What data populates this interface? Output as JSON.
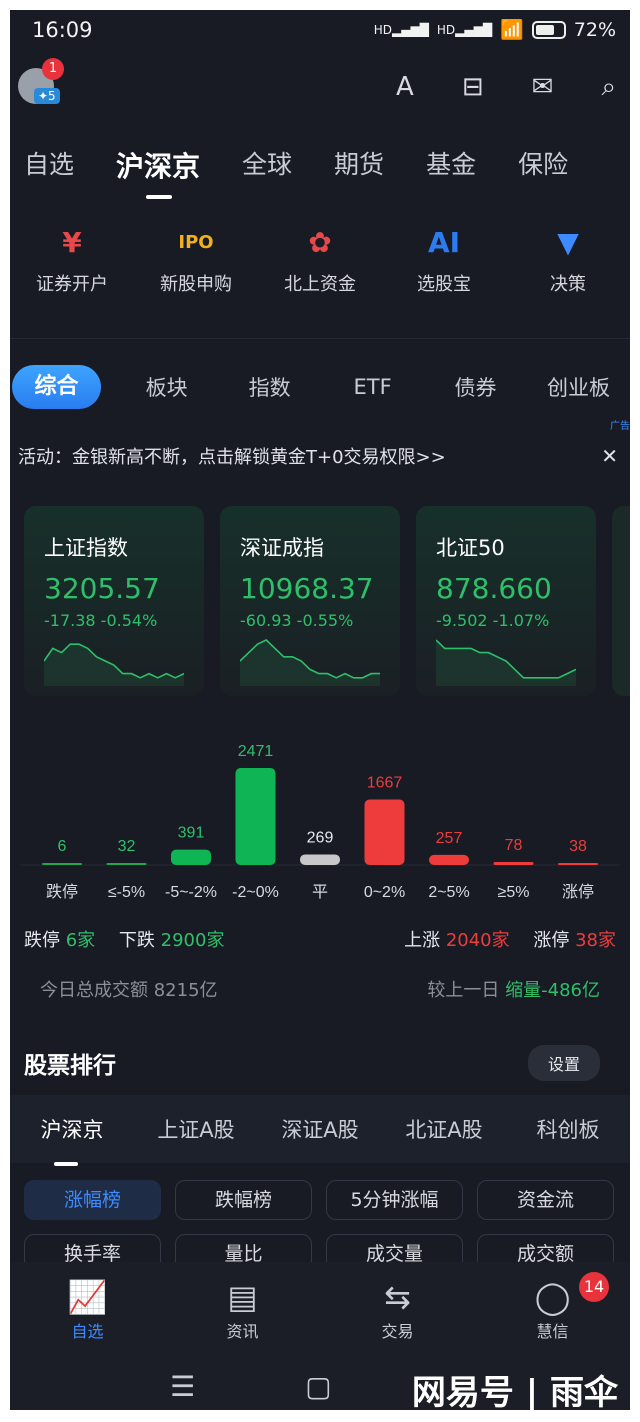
{
  "status": {
    "time": "16:09",
    "signal1": "HD",
    "signal2": "HD",
    "battery": "72%"
  },
  "header": {
    "avatar_badge": "1",
    "avatar_level": "✦5",
    "icons": [
      "font-size-icon",
      "scan-icon",
      "mail-icon",
      "search-icon"
    ]
  },
  "main_tabs": [
    {
      "label": "自选"
    },
    {
      "label": "沪深京",
      "active": true
    },
    {
      "label": "全球"
    },
    {
      "label": "期货",
      "dot": true
    },
    {
      "label": "基金"
    },
    {
      "label": "保险"
    }
  ],
  "quick": [
    {
      "label": "证券开户",
      "icon": "lock-yen-icon",
      "color": "#e8484a"
    },
    {
      "label": "新股申购",
      "icon": "ipo-icon",
      "color": "#f2b01e"
    },
    {
      "label": "北上资金",
      "icon": "hk-flower-icon",
      "color": "#e8484a"
    },
    {
      "label": "选股宝",
      "icon": "ai-head-icon",
      "color": "#2a7cf0"
    },
    {
      "label": "决策",
      "icon": "dropdown-circle-icon",
      "color": "#3d8bff"
    }
  ],
  "sub_tabs": [
    {
      "label": "综合",
      "active": true
    },
    {
      "label": "板块"
    },
    {
      "label": "指数"
    },
    {
      "label": "ETF"
    },
    {
      "label": "债券"
    },
    {
      "label": "创业板"
    }
  ],
  "ad": {
    "text": "活动：金银新高不断，点击解锁黄金T+0交易权限>>",
    "tag": "广告"
  },
  "indices": [
    {
      "name": "上证指数",
      "price": "3205.57",
      "change": "-17.38 -0.54%",
      "spark": [
        5,
        8,
        7,
        9,
        9,
        8,
        6,
        5,
        4,
        2,
        2,
        1,
        2,
        1,
        2,
        1,
        2
      ]
    },
    {
      "name": "深证成指",
      "price": "10968.37",
      "change": "-60.93 -0.55%",
      "spark": [
        5,
        7,
        9,
        10,
        8,
        6,
        6,
        5,
        3,
        2,
        2,
        1,
        2,
        1,
        1,
        2,
        2
      ]
    },
    {
      "name": "北证50",
      "price": "878.660",
      "change": "-9.502 -1.07%",
      "spark": [
        10,
        8,
        8,
        8,
        8,
        7,
        7,
        6,
        5,
        3,
        1,
        1,
        1,
        1,
        1,
        2,
        3
      ]
    }
  ],
  "chart_data": {
    "type": "bar",
    "categories": [
      "跌停",
      "≤-5%",
      "-5~-2%",
      "-2~0%",
      "平",
      "0~2%",
      "2~5%",
      "≥5%",
      "涨停"
    ],
    "values": [
      6,
      32,
      391,
      2471,
      269,
      1667,
      257,
      78,
      38
    ],
    "colors": [
      "#1fa64f",
      "#1fa64f",
      "#0fb454",
      "#0fb454",
      "#c8c8c8",
      "#ee3b3b",
      "#ee3b3b",
      "#ee3b3b",
      "#ee3b3b"
    ],
    "label_colors": [
      "#2fbf6a",
      "#2fbf6a",
      "#2fbf6a",
      "#2fbf6a",
      "#e6e8ee",
      "#ea3d3d",
      "#ea3d3d",
      "#ea3d3d",
      "#ea3d3d"
    ]
  },
  "stats": {
    "limit_down_label": "跌停",
    "limit_down": "6家",
    "down_label": "下跌",
    "down": "2900家",
    "up_label": "上涨",
    "up": "2040家",
    "limit_up_label": "涨停",
    "limit_up": "38家",
    "turnover": "今日总成交额 8215亿",
    "compare_label": "较上一日",
    "compare": "缩量-486亿"
  },
  "ranking": {
    "title": "股票排行",
    "settings": "设置",
    "tabs": [
      {
        "label": "沪深京",
        "active": true
      },
      {
        "label": "上证A股"
      },
      {
        "label": "深证A股"
      },
      {
        "label": "北证A股"
      },
      {
        "label": "科创板"
      }
    ],
    "chips": [
      {
        "label": "涨幅榜",
        "active": true
      },
      {
        "label": "跌幅榜"
      },
      {
        "label": "5分钟涨幅"
      },
      {
        "label": "资金流"
      },
      {
        "label": "换手率"
      },
      {
        "label": "量比"
      },
      {
        "label": "成交量"
      },
      {
        "label": "成交额"
      }
    ]
  },
  "nav": [
    {
      "label": "自选",
      "icon": "watchlist-chart-icon",
      "active": true
    },
    {
      "label": "资讯",
      "icon": "news-icon"
    },
    {
      "label": "交易",
      "icon": "exchange-icon"
    },
    {
      "label": "慧信",
      "icon": "chat-icon",
      "badge": "14"
    }
  ],
  "watermark": "网易号 | 雨伞",
  "colors": {
    "bg": "#181b24",
    "accent": "#3d8bff",
    "up": "#ea3d3d",
    "down": "#2fbf6a"
  }
}
